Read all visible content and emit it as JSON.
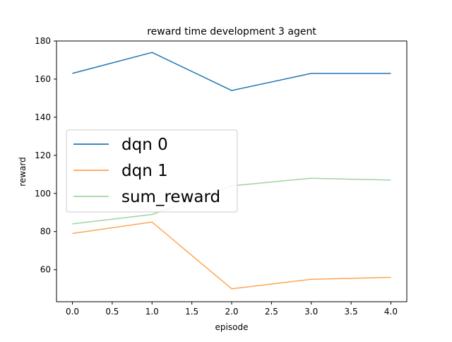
{
  "chart_data": {
    "type": "line",
    "title": "reward time development 3 agent",
    "xlabel": "episode",
    "ylabel": "reward",
    "x": [
      0,
      1,
      2,
      3,
      4
    ],
    "xlim": [
      -0.2,
      4.2
    ],
    "ylim": [
      43.2,
      180
    ],
    "xticks": [
      0.0,
      0.5,
      1.0,
      1.5,
      2.0,
      2.5,
      3.0,
      3.5,
      4.0
    ],
    "xtick_labels": [
      "0.0",
      "0.5",
      "1.0",
      "1.5",
      "2.0",
      "2.5",
      "3.0",
      "3.5",
      "4.0"
    ],
    "yticks": [
      60,
      80,
      100,
      120,
      140,
      160,
      180
    ],
    "ytick_labels": [
      "60",
      "80",
      "100",
      "120",
      "140",
      "160",
      "180"
    ],
    "grid": false,
    "legend_position": "center-left",
    "series": [
      {
        "name": "dqn 0",
        "color": "#1f77b4",
        "values": [
          163,
          174,
          154,
          163,
          163
        ]
      },
      {
        "name": "dqn 1",
        "color": "#ff7f0e",
        "alpha": 0.7,
        "values": [
          79,
          85,
          50,
          55,
          56
        ]
      },
      {
        "name": "sum_reward",
        "color": "#2ca02c",
        "alpha": 0.45,
        "values": [
          84,
          89,
          104,
          108,
          107
        ]
      }
    ]
  }
}
